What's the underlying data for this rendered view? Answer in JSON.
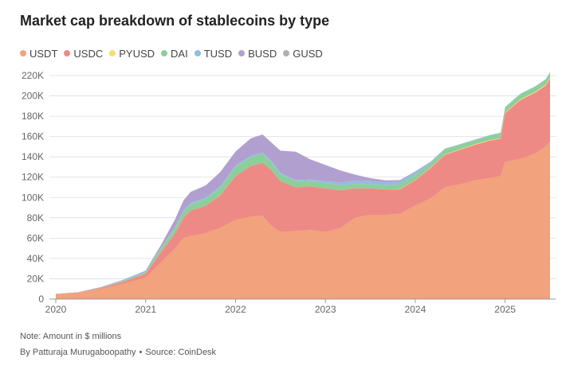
{
  "chart_data": {
    "type": "area",
    "stacked": true,
    "title": "Market cap breakdown of stablecoins by type",
    "ylabel": "",
    "xlabel": "",
    "ylim": [
      0,
      220000
    ],
    "xlim": [
      2020.0,
      2025.6
    ],
    "yticks": [
      0,
      20000,
      40000,
      60000,
      80000,
      100000,
      120000,
      140000,
      160000,
      180000,
      200000,
      220000
    ],
    "ytick_labels": [
      "0",
      "20K",
      "40K",
      "60K",
      "80K",
      "100K",
      "120K",
      "140K",
      "160K",
      "180K",
      "200K",
      "220K"
    ],
    "xticks": [
      2020,
      2021,
      2022,
      2023,
      2024,
      2025
    ],
    "xtick_labels": [
      "2020",
      "2021",
      "2022",
      "2023",
      "2024",
      "2025"
    ],
    "grid": true,
    "legend_position": "top-left",
    "x": [
      2020.0,
      2020.25,
      2020.5,
      2020.75,
      2021.0,
      2021.17,
      2021.33,
      2021.42,
      2021.5,
      2021.67,
      2021.83,
      2022.0,
      2022.17,
      2022.3,
      2022.4,
      2022.5,
      2022.67,
      2022.83,
      2023.0,
      2023.17,
      2023.33,
      2023.5,
      2023.67,
      2023.83,
      2024.0,
      2024.17,
      2024.33,
      2024.5,
      2024.67,
      2024.83,
      2024.95,
      2025.0,
      2025.17,
      2025.33,
      2025.45,
      2025.5
    ],
    "series": [
      {
        "name": "USDT",
        "color": "#f2a27c",
        "values": [
          4600,
          6000,
          10000,
          15000,
          21000,
          36000,
          50000,
          60000,
          62000,
          65000,
          70000,
          78000,
          81000,
          82000,
          72000,
          66000,
          67000,
          68000,
          66000,
          70000,
          80000,
          83000,
          83000,
          84000,
          92000,
          99000,
          110000,
          113000,
          117000,
          119000,
          121000,
          135000,
          138000,
          143000,
          150000,
          155000
        ]
      },
      {
        "name": "USDC",
        "color": "#ee8a86",
        "values": [
          400,
          600,
          1000,
          2000,
          4000,
          10000,
          15000,
          20000,
          25000,
          27000,
          32000,
          43000,
          50000,
          52000,
          55000,
          50000,
          43000,
          43000,
          43000,
          37000,
          29000,
          26000,
          25000,
          24000,
          25000,
          30000,
          32000,
          34000,
          35000,
          37000,
          37000,
          48000,
          58000,
          60000,
          60000,
          62000
        ]
      },
      {
        "name": "PYUSD",
        "color": "#f3e06e",
        "values": [
          0,
          0,
          0,
          0,
          0,
          0,
          0,
          0,
          0,
          0,
          0,
          0,
          0,
          0,
          0,
          0,
          0,
          0,
          0,
          0,
          0,
          0,
          0,
          100,
          150,
          250,
          400,
          500,
          600,
          500,
          500,
          500,
          700,
          800,
          900,
          900
        ]
      },
      {
        "name": "DAI",
        "color": "#8dcf9a",
        "values": [
          100,
          150,
          400,
          1000,
          1500,
          3500,
          5000,
          5500,
          6000,
          6500,
          7500,
          9000,
          9000,
          9000,
          8000,
          7000,
          6000,
          5500,
          5000,
          5000,
          4500,
          4000,
          4000,
          5000,
          5000,
          4500,
          5000,
          4500,
          4000,
          4500,
          4800,
          5000,
          5000,
          5000,
          5000,
          5000
        ]
      },
      {
        "name": "TUSD",
        "color": "#8fbfe0",
        "values": [
          100,
          150,
          300,
          500,
          500,
          700,
          1000,
          1500,
          1500,
          1500,
          1500,
          1200,
          1200,
          1100,
          1100,
          1100,
          1100,
          1100,
          2000,
          2500,
          3000,
          3000,
          2800,
          2500,
          2500,
          1000,
          500,
          500,
          500,
          500,
          500,
          500,
          500,
          500,
          500,
          500
        ]
      },
      {
        "name": "BUSD",
        "color": "#b1a0cf",
        "values": [
          0,
          0,
          200,
          500,
          1000,
          3000,
          8000,
          10000,
          11000,
          12000,
          14000,
          14000,
          17000,
          18000,
          18000,
          22000,
          28000,
          20000,
          16000,
          12000,
          6000,
          3000,
          2000,
          1500,
          1000,
          500,
          200,
          100,
          100,
          0,
          0,
          0,
          0,
          0,
          0,
          0
        ]
      },
      {
        "name": "GUSD",
        "color": "#b0b0b0",
        "values": [
          0,
          0,
          0,
          0,
          0,
          0,
          0,
          0,
          0,
          0,
          0,
          0,
          0,
          0,
          0,
          0,
          0,
          0,
          0,
          0,
          0,
          0,
          0,
          0,
          0,
          0,
          0,
          0,
          0,
          0,
          0,
          0,
          0,
          0,
          0,
          0
        ]
      }
    ]
  },
  "footer": {
    "note": "Note: Amount in $ millions",
    "byline": "By Patturaja Murugaboopathy",
    "bullet": "•",
    "source": "Source: CoinDesk"
  }
}
